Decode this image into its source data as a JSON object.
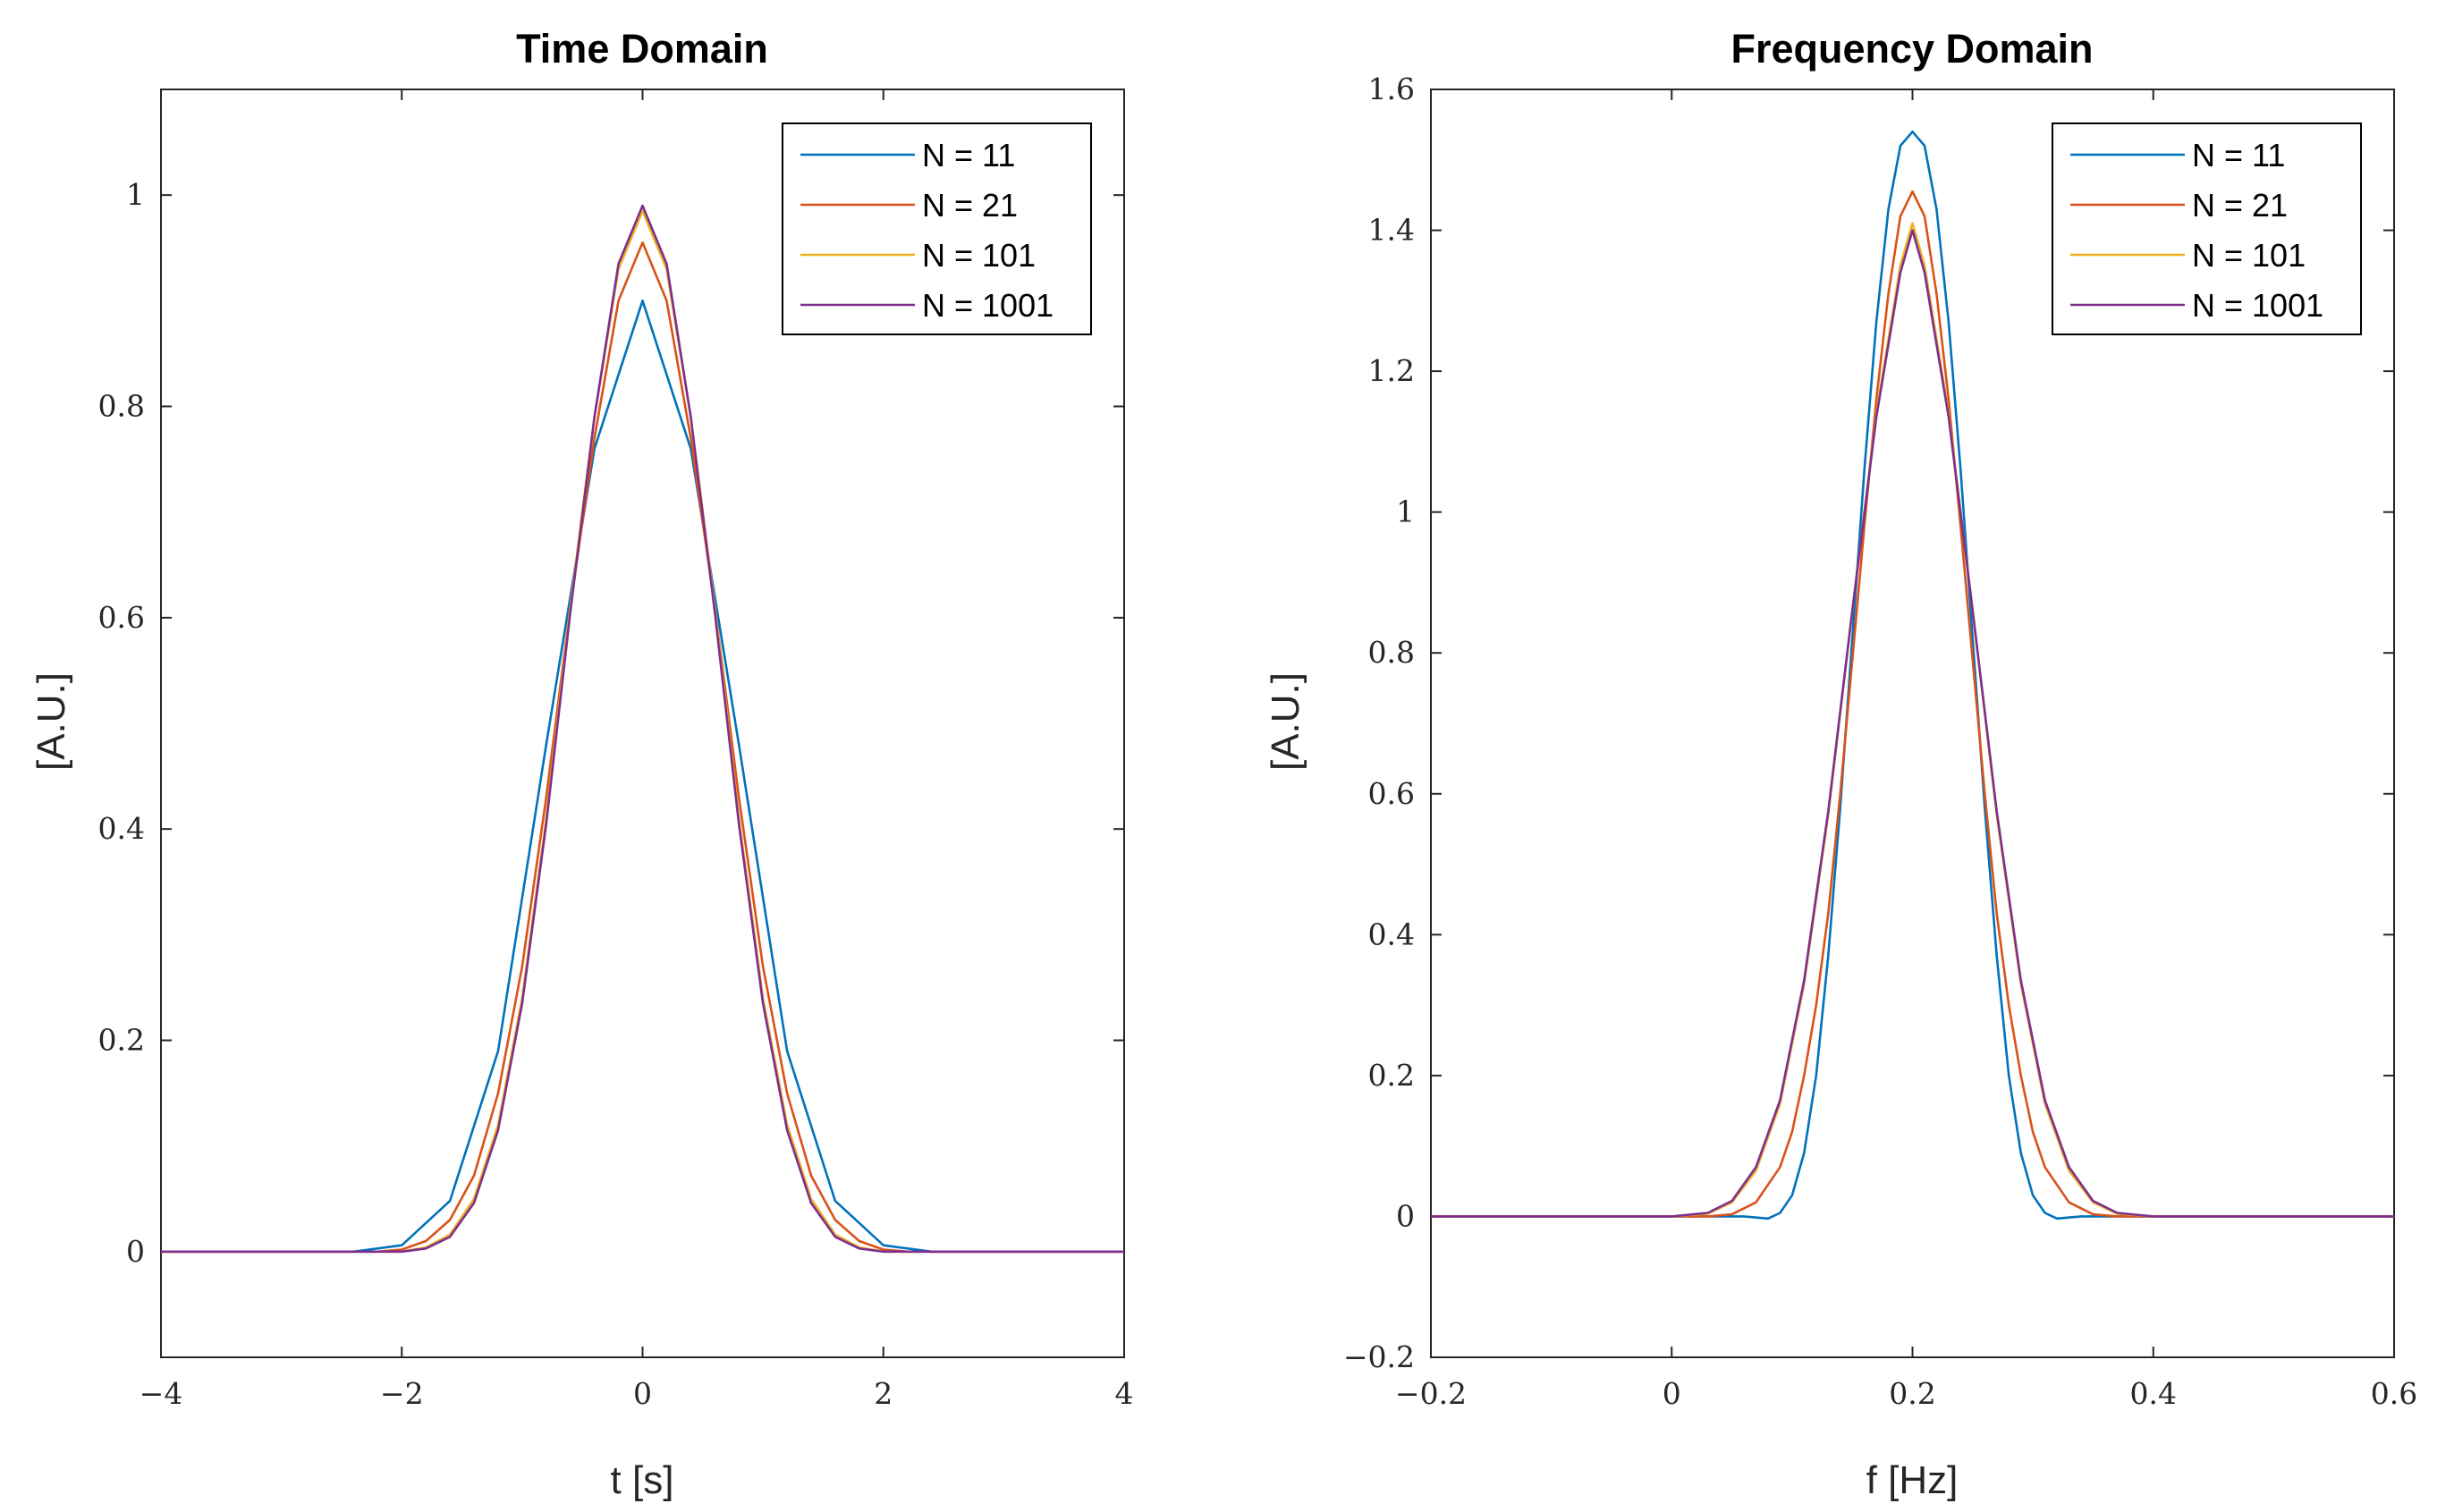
{
  "colors": {
    "N11": "#0072BD",
    "N21": "#D95319",
    "N101": "#EDB120",
    "N1001": "#7E2F8E",
    "axis": "#262626"
  },
  "chart_data": [
    {
      "type": "line",
      "title": "Time Domain",
      "xlabel": "t [s]",
      "ylabel": "[A.U.]",
      "xlim": [
        -4,
        4
      ],
      "ylim": [
        -0.1,
        1.1
      ],
      "xticks": [
        -4,
        -2,
        0,
        2,
        4
      ],
      "xtick_labels": [
        "−4",
        "−2",
        "0",
        "2",
        "4"
      ],
      "yticks": [
        0,
        0.2,
        0.4,
        0.6,
        0.8,
        1
      ],
      "ytick_labels": [
        "0",
        "0.2",
        "0.4",
        "0.6",
        "0.8",
        "1"
      ],
      "legend": {
        "position": "top-right",
        "entries": [
          "N = 11",
          "N = 21",
          "N = 101",
          "N = 1001"
        ]
      },
      "series": [
        {
          "name": "N = 11",
          "color": "#0072BD",
          "x": [
            -4,
            -2.4,
            -2.0,
            -1.6,
            -1.2,
            -0.8,
            -0.4,
            0,
            0.4,
            0.8,
            1.2,
            1.6,
            2.0,
            2.4,
            4
          ],
          "y": [
            0,
            0,
            0.006,
            0.048,
            0.19,
            0.48,
            0.76,
            0.9,
            0.76,
            0.48,
            0.19,
            0.048,
            0.006,
            0,
            0
          ]
        },
        {
          "name": "N = 21",
          "color": "#D95319",
          "x": [
            -4,
            -2.2,
            -2.0,
            -1.8,
            -1.6,
            -1.4,
            -1.2,
            -1.0,
            -0.8,
            -0.6,
            -0.4,
            -0.2,
            0,
            0.2,
            0.4,
            0.6,
            0.8,
            1.0,
            1.2,
            1.4,
            1.6,
            1.8,
            2.0,
            2.2,
            4
          ],
          "y": [
            0,
            0,
            0.002,
            0.01,
            0.03,
            0.072,
            0.15,
            0.27,
            0.43,
            0.61,
            0.77,
            0.9,
            0.955,
            0.9,
            0.77,
            0.61,
            0.43,
            0.27,
            0.15,
            0.072,
            0.03,
            0.01,
            0.002,
            0,
            0
          ]
        },
        {
          "name": "N = 101",
          "color": "#EDB120",
          "x": [
            -4,
            -2.0,
            -1.8,
            -1.6,
            -1.4,
            -1.2,
            -1.0,
            -0.8,
            -0.6,
            -0.4,
            -0.2,
            0,
            0.2,
            0.4,
            0.6,
            0.8,
            1.0,
            1.2,
            1.4,
            1.6,
            1.8,
            2.0,
            4
          ],
          "y": [
            0,
            0,
            0.004,
            0.016,
            0.05,
            0.12,
            0.24,
            0.41,
            0.61,
            0.79,
            0.93,
            0.985,
            0.93,
            0.79,
            0.61,
            0.41,
            0.24,
            0.12,
            0.05,
            0.016,
            0.004,
            0,
            0
          ]
        },
        {
          "name": "N = 1001",
          "color": "#7E2F8E",
          "x": [
            -4,
            -2.0,
            -1.8,
            -1.6,
            -1.4,
            -1.2,
            -1.0,
            -0.8,
            -0.6,
            -0.4,
            -0.2,
            0,
            0.2,
            0.4,
            0.6,
            0.8,
            1.0,
            1.2,
            1.4,
            1.6,
            1.8,
            2.0,
            4
          ],
          "y": [
            0,
            0,
            0.003,
            0.014,
            0.046,
            0.115,
            0.235,
            0.405,
            0.605,
            0.79,
            0.935,
            0.99,
            0.935,
            0.79,
            0.605,
            0.405,
            0.235,
            0.115,
            0.046,
            0.014,
            0.003,
            0,
            0
          ]
        }
      ]
    },
    {
      "type": "line",
      "title": "Frequency Domain",
      "xlabel": "f [Hz]",
      "ylabel": "[A.U.]",
      "xlim": [
        -0.2,
        0.6
      ],
      "ylim": [
        -0.2,
        1.6
      ],
      "xticks": [
        -0.2,
        0,
        0.2,
        0.4,
        0.6
      ],
      "xtick_labels": [
        "−0.2",
        "0",
        "0.2",
        "0.4",
        "0.6"
      ],
      "yticks": [
        -0.2,
        0,
        0.2,
        0.4,
        0.6,
        0.8,
        1,
        1.2,
        1.4,
        1.6
      ],
      "ytick_labels": [
        "−0.2",
        "0",
        "0.2",
        "0.4",
        "0.6",
        "0.8",
        "1",
        "1.2",
        "1.4",
        "1.6"
      ],
      "legend": {
        "position": "top-right",
        "entries": [
          "N = 11",
          "N = 21",
          "N = 101",
          "N = 1001"
        ]
      },
      "series": [
        {
          "name": "N = 11",
          "color": "#0072BD",
          "x": [
            -0.2,
            0.06,
            0.08,
            0.09,
            0.1,
            0.11,
            0.12,
            0.13,
            0.14,
            0.15,
            0.16,
            0.17,
            0.18,
            0.19,
            0.2,
            0.21,
            0.22,
            0.23,
            0.24,
            0.25,
            0.26,
            0.27,
            0.28,
            0.29,
            0.3,
            0.31,
            0.32,
            0.34,
            0.6
          ],
          "y": [
            0,
            0,
            -0.003,
            0.005,
            0.03,
            0.09,
            0.2,
            0.37,
            0.58,
            0.82,
            1.06,
            1.27,
            1.43,
            1.52,
            1.54,
            1.52,
            1.43,
            1.27,
            1.06,
            0.82,
            0.58,
            0.37,
            0.2,
            0.09,
            0.03,
            0.005,
            -0.003,
            0,
            0
          ]
        },
        {
          "name": "N = 21",
          "color": "#D95319",
          "x": [
            -0.2,
            0.03,
            0.05,
            0.07,
            0.09,
            0.1,
            0.11,
            0.12,
            0.13,
            0.14,
            0.15,
            0.16,
            0.17,
            0.18,
            0.19,
            0.2,
            0.21,
            0.22,
            0.23,
            0.24,
            0.25,
            0.26,
            0.27,
            0.28,
            0.29,
            0.3,
            0.31,
            0.33,
            0.35,
            0.37,
            0.6
          ],
          "y": [
            0,
            0,
            0.003,
            0.02,
            0.07,
            0.12,
            0.2,
            0.3,
            0.43,
            0.6,
            0.79,
            0.98,
            1.16,
            1.31,
            1.42,
            1.455,
            1.42,
            1.31,
            1.16,
            0.98,
            0.79,
            0.6,
            0.43,
            0.3,
            0.2,
            0.12,
            0.07,
            0.02,
            0.003,
            0,
            0
          ]
        },
        {
          "name": "N = 101",
          "color": "#EDB120",
          "x": [
            -0.2,
            0.0,
            0.03,
            0.05,
            0.07,
            0.09,
            0.11,
            0.13,
            0.15,
            0.17,
            0.19,
            0.2,
            0.21,
            0.23,
            0.25,
            0.27,
            0.29,
            0.31,
            0.33,
            0.35,
            0.37,
            0.4,
            0.6
          ],
          "y": [
            0,
            0,
            0.004,
            0.02,
            0.065,
            0.16,
            0.33,
            0.57,
            0.86,
            1.14,
            1.35,
            1.41,
            1.35,
            1.14,
            0.86,
            0.57,
            0.33,
            0.16,
            0.065,
            0.02,
            0.004,
            0,
            0
          ]
        },
        {
          "name": "N = 1001",
          "color": "#7E2F8E",
          "x": [
            -0.2,
            0.0,
            0.03,
            0.05,
            0.07,
            0.09,
            0.11,
            0.13,
            0.15,
            0.17,
            0.19,
            0.2,
            0.21,
            0.23,
            0.25,
            0.27,
            0.29,
            0.31,
            0.33,
            0.35,
            0.37,
            0.4,
            0.6
          ],
          "y": [
            0,
            0,
            0.005,
            0.022,
            0.07,
            0.165,
            0.335,
            0.575,
            0.86,
            1.135,
            1.34,
            1.4,
            1.34,
            1.135,
            0.86,
            0.575,
            0.335,
            0.165,
            0.07,
            0.022,
            0.005,
            0,
            0
          ]
        }
      ]
    }
  ]
}
